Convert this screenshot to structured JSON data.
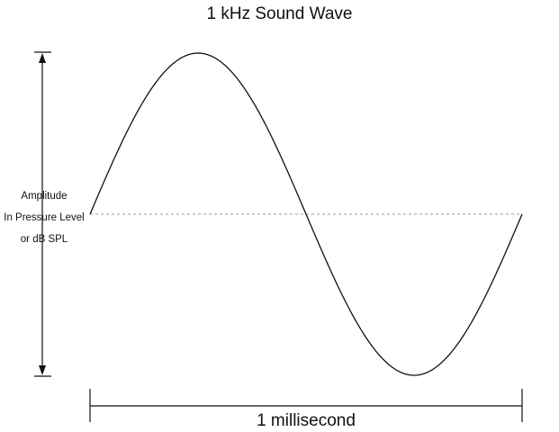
{
  "title": "1 kHz Sound Wave",
  "amplitude_label": {
    "lines": [
      "Amplitude",
      "In Pressure Level",
      "or dB SPL"
    ]
  },
  "time_label": "1 millisecond",
  "wave": {
    "frequency": "1 kHz",
    "cycles": 1
  },
  "colors": {
    "stroke": "#111111",
    "baseline": "#9a9a9a",
    "background": "#ffffff"
  }
}
